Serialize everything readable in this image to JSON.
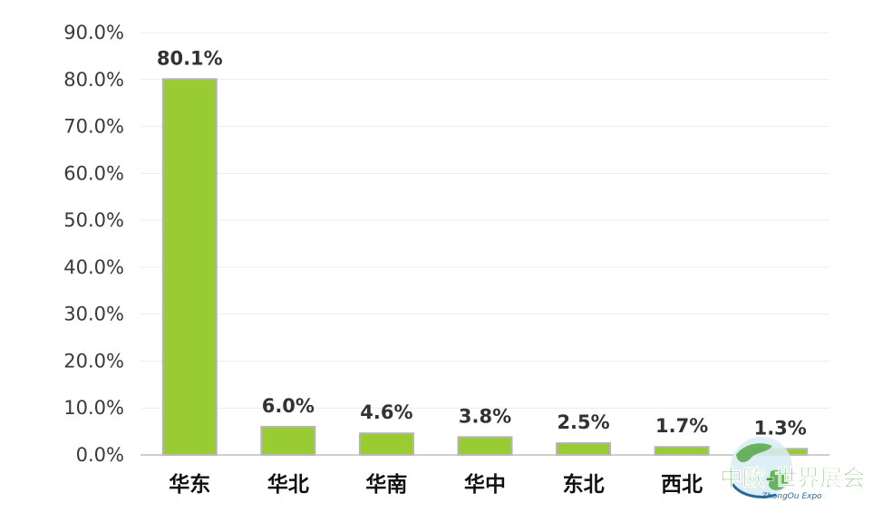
{
  "chart_data": {
    "type": "bar",
    "categories": [
      "华东",
      "华北",
      "华南",
      "华中",
      "东北",
      "西北",
      ""
    ],
    "values": [
      80.1,
      6.0,
      4.6,
      3.8,
      2.5,
      1.7,
      1.3
    ],
    "data_labels": [
      "80.1%",
      "6.0%",
      "4.6%",
      "3.8%",
      "2.5%",
      "1.7%",
      "1.3%"
    ],
    "title": "",
    "xlabel": "",
    "ylabel": "",
    "ylim": [
      0,
      90
    ],
    "y_ticks": [
      0,
      10,
      20,
      30,
      40,
      50,
      60,
      70,
      80,
      90
    ],
    "y_tick_labels": [
      "0.0%",
      "10.0%",
      "20.0%",
      "30.0%",
      "40.0%",
      "50.0%",
      "60.0%",
      "70.0%",
      "80.0%",
      "90.0%"
    ],
    "grid": true,
    "legend": "none",
    "bar_color": "#99cc33",
    "bar_border_color": "#b5b5b5"
  },
  "watermark": {
    "text": "中欧-世界展会",
    "subtext": "ZhongOu Expo",
    "icon": "globe-icon"
  }
}
